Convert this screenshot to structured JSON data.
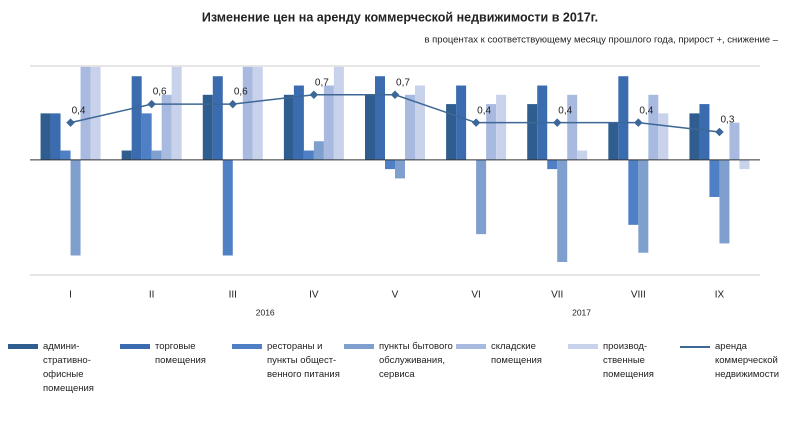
{
  "chart_data": {
    "type": "bar",
    "title": "Изменение цен на аренду коммерческой  недвижимости  в 2017г.",
    "subtitle": "в процентах к соответствующему месяцу прошлого года, прирост +, снижение –",
    "categories": [
      "I",
      "II",
      "III",
      "IV",
      "V",
      "VI",
      "VII",
      "VIII",
      "IX"
    ],
    "year_labels": [
      "2016",
      "2017"
    ],
    "ylim": [
      -1.24,
      1.01
    ],
    "series": [
      {
        "name": "админи-\nстративно-\nофисные\nпомещения",
        "color": "#2f5d8f",
        "values": [
          0.5,
          0.1,
          0.7,
          0.7,
          0.7,
          0.6,
          0.6,
          0.4,
          0.5
        ]
      },
      {
        "name": "торговые\nпомещения",
        "color": "#3b6cb0",
        "values": [
          0.5,
          0.9,
          0.9,
          0.8,
          0.9,
          0.8,
          0.8,
          0.9,
          0.6
        ]
      },
      {
        "name": "рестораны и\nпункты общест-\nвенного питания",
        "color": "#4f80c6",
        "values": [
          0.1,
          0.5,
          -1.03,
          0.1,
          -0.1,
          0,
          -0.1,
          -0.7,
          -0.4
        ]
      },
      {
        "name": "пункты бытового\nобслуживания,\nсервиса",
        "color": "#7f9fcf",
        "values": [
          -1.03,
          0.1,
          0,
          0.2,
          -0.2,
          -0.8,
          -1.1,
          -1.0,
          -0.9
        ]
      },
      {
        "name": "складские\nпомещения",
        "color": "#a9bae0",
        "values": [
          1.0,
          0.7,
          1.0,
          0.8,
          0.7,
          0.6,
          0.7,
          0.7,
          0.4
        ]
      },
      {
        "name": "производ-\nственные\nпомещения",
        "color": "#c9d2eb",
        "values": [
          1.0,
          1.0,
          1.0,
          1.0,
          0.8,
          0.7,
          0.1,
          0.5,
          -0.1
        ]
      },
      {
        "name": "аренда\nкоммерческой\nнедвижимости",
        "type": "line",
        "color": "#3d6796",
        "values": [
          0.4,
          0.6,
          0.6,
          0.7,
          0.7,
          0.4,
          0.4,
          0.4,
          0.3
        ],
        "value_labels": [
          "0,4",
          "0,6",
          "0,6",
          "0,7",
          "0,7",
          "0,4",
          "0,4",
          "0,4",
          "0,3"
        ]
      }
    ]
  }
}
